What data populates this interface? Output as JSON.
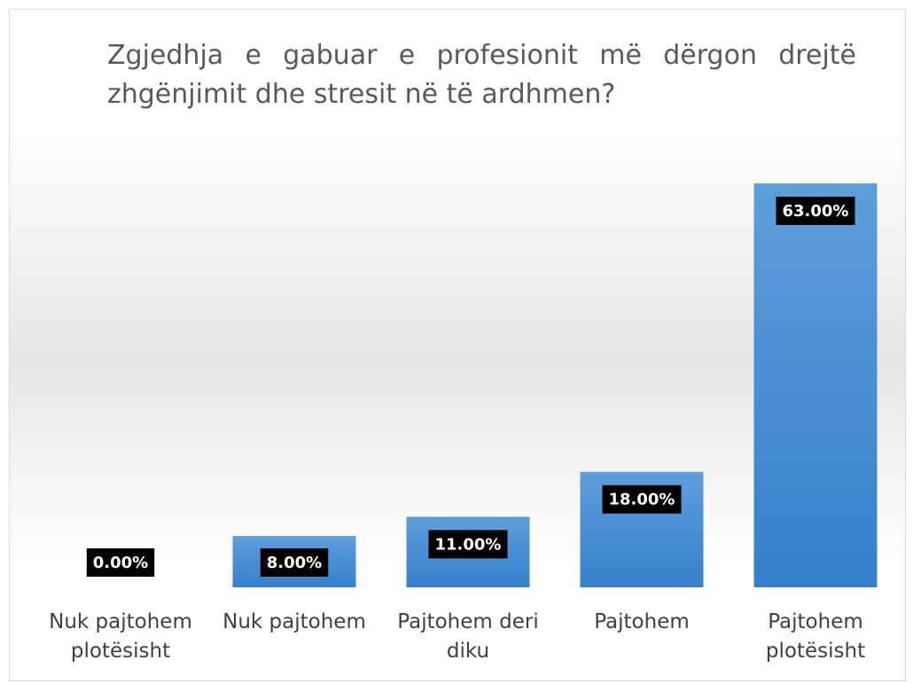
{
  "chart_data": {
    "type": "bar",
    "title": "Zgjedhja e gabuar e profesionit më dërgon drejtë zhgënjimit dhe stresit në të ardhmen?",
    "categories": [
      "Nuk pajtohem plotësisht",
      "Nuk pajtohem",
      "Pajtohem deri diku",
      "Pajtohem",
      "Pajtohem plotësisht"
    ],
    "values": [
      0,
      8,
      11,
      18,
      63
    ],
    "value_labels": [
      "0.00%",
      "8.00%",
      "11.00%",
      "18.00%",
      "63.00%"
    ],
    "color": "#4a8fd6"
  }
}
